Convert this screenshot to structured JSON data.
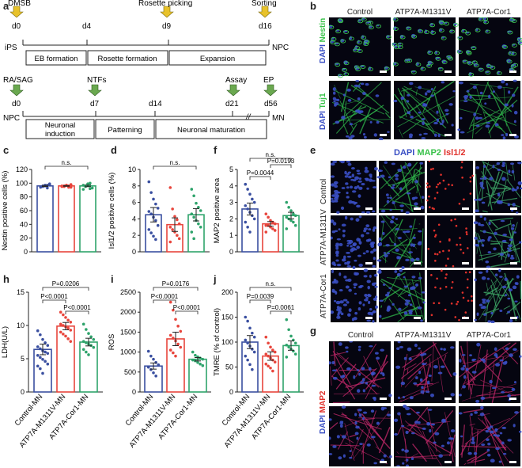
{
  "panel_letters": {
    "a": "a",
    "b": "b",
    "c": "c",
    "d": "d",
    "e": "e",
    "f": "f",
    "g": "g",
    "h": "h",
    "i": "i",
    "j": "j"
  },
  "timeline1": {
    "events": [
      "DMSB",
      "Rosette picking",
      "Sorting"
    ],
    "days": [
      "d0",
      "d4",
      "d9",
      "d16"
    ],
    "start": "iPS",
    "end": "NPC",
    "stages": [
      "EB formation",
      "Rosette  formation",
      "Expansion"
    ],
    "arrow_color": "#e8c22b"
  },
  "timeline2": {
    "events": [
      "RA/SAG",
      "NTFs",
      "Assay",
      "EP"
    ],
    "days": [
      "d0",
      "d7",
      "d14",
      "d21",
      "d56"
    ],
    "start": "NPC",
    "end": "MN",
    "stages": [
      "Neuronal\ninduction",
      "Patterning",
      "Neuronal maturation"
    ],
    "break_mark": "//",
    "arrow_color": "#6aa84f"
  },
  "panel_b": {
    "columns": [
      "Control",
      "ATP7A-M1311V",
      "ATP7A-Cor1"
    ],
    "rows": [
      {
        "dapi": "DAPI",
        "marker": "Nestin",
        "marker_color": "#39c24a"
      },
      {
        "dapi": "DAPI",
        "marker": "Tuj1",
        "marker_color": "#39c24a"
      }
    ]
  },
  "panel_e": {
    "header": {
      "dapi": "DAPI",
      "map2": "MAP2",
      "isl": "Isl1/2"
    },
    "rows": [
      "Control",
      "ATP7A-M1311V",
      "ATP7A-Cor1"
    ]
  },
  "panel_g": {
    "columns": [
      "Control",
      "ATP7A-M1311V",
      "ATP7A-Cor1"
    ],
    "side": {
      "dapi": "DAPI",
      "marker": "MAP2"
    }
  },
  "colors": {
    "control": "#3a4fa0",
    "mutant": "#e8453c",
    "corrected": "#2ea36b",
    "dapi": "#3a4fc4",
    "green": "#39c24a",
    "red": "#e0312b"
  },
  "chart_data": [
    {
      "id": "c",
      "type": "bar",
      "ylabel": "Nestin positive cells (%)",
      "ylim": [
        0,
        120
      ],
      "yticks": [
        0,
        20,
        40,
        60,
        80,
        100,
        120
      ],
      "categories": [
        "",
        "",
        ""
      ],
      "values": [
        96,
        96,
        96
      ],
      "points": [
        [
          94,
          95,
          96,
          97,
          98,
          95,
          96,
          97,
          93,
          99
        ],
        [
          95,
          96,
          97,
          94,
          98,
          96,
          95,
          97,
          96,
          94
        ],
        [
          91,
          95,
          98,
          100,
          93,
          97,
          96,
          99,
          92
        ]
      ],
      "comparisons": [
        {
          "from": 0,
          "to": 2,
          "label": "n.s."
        }
      ]
    },
    {
      "id": "d",
      "type": "bar",
      "ylabel": "Isl1/2 positive cells (%)",
      "ylim": [
        0,
        10
      ],
      "yticks": [
        0,
        2,
        4,
        6,
        8,
        10
      ],
      "categories": [
        "",
        "",
        ""
      ],
      "values": [
        4.5,
        3.3,
        4.5
      ],
      "points": [
        [
          8.5,
          7.2,
          6.4,
          5.8,
          5.3,
          4.9,
          4.6,
          4.2,
          3.8,
          3.2,
          2.7,
          2.3,
          1.9,
          1.5
        ],
        [
          7.8,
          5.2,
          4.3,
          3.9,
          3.4,
          3.0,
          2.7,
          2.4,
          2.0,
          1.6,
          1.2
        ],
        [
          7.6,
          6.8,
          5.9,
          5.4,
          5.0,
          4.6,
          4.2,
          3.8,
          3.4,
          3.0,
          2.4,
          1.6
        ]
      ],
      "comparisons": [
        {
          "from": 0,
          "to": 2,
          "label": "n.s."
        }
      ]
    },
    {
      "id": "f",
      "type": "bar",
      "ylabel": "MAP2 positive area",
      "ylim": [
        0,
        5
      ],
      "yticks": [
        0,
        1,
        2,
        3,
        4,
        5
      ],
      "categories": [
        "",
        "",
        ""
      ],
      "values": [
        2.6,
        1.7,
        2.2
      ],
      "points": [
        [
          4.1,
          3.8,
          3.5,
          3.2,
          3.0,
          2.8,
          2.6,
          2.4,
          2.2,
          2.0,
          1.8,
          1.5,
          1.2
        ],
        [
          2.3,
          2.1,
          1.9,
          1.8,
          1.7,
          1.6,
          1.6,
          1.5,
          1.4,
          1.3,
          1.2
        ],
        [
          3.0,
          2.7,
          2.5,
          2.3,
          2.2,
          2.1,
          2.0,
          1.9,
          1.8,
          1.6,
          1.4
        ]
      ],
      "comparisons": [
        {
          "from": 0,
          "to": 2,
          "label": "n.s."
        },
        {
          "from": 0,
          "to": 1,
          "label": "P=0.0044"
        },
        {
          "from": 1,
          "to": 2,
          "label": "P=0.0193"
        }
      ]
    },
    {
      "id": "h",
      "type": "bar",
      "ylabel": "LDH(U/L)",
      "ylim": [
        0,
        15
      ],
      "yticks": [
        0,
        5,
        10,
        15
      ],
      "categories": [
        "Control-MN",
        "ATP7A-M1311V-MN",
        "ATP7A-Cor1-MN"
      ],
      "values": [
        6.4,
        9.9,
        7.5
      ],
      "points": [
        [
          9.2,
          8.6,
          7.9,
          7.4,
          7.0,
          6.8,
          6.5,
          6.2,
          6.0,
          5.8,
          5.5,
          5.2,
          4.9,
          4.6,
          4.2,
          3.9,
          3.5,
          2.8
        ],
        [
          12.0,
          11.6,
          11.2,
          10.8,
          10.5,
          10.2,
          10.0,
          9.8,
          9.6,
          9.3,
          9.0,
          8.7,
          8.4,
          8.0,
          7.6
        ],
        [
          10.2,
          9.4,
          8.8,
          8.3,
          7.9,
          7.6,
          7.4,
          7.2,
          7.0,
          6.7,
          6.4,
          6.0,
          5.6
        ]
      ],
      "comparisons": [
        {
          "from": 0,
          "to": 2,
          "label": "P=0.0206"
        },
        {
          "from": 0,
          "to": 1,
          "label": "P<0.0001"
        },
        {
          "from": 1,
          "to": 2,
          "label": "P<0.0001"
        }
      ]
    },
    {
      "id": "i",
      "type": "bar",
      "ylabel": "ROS",
      "ylim": [
        0,
        2500
      ],
      "yticks": [
        0,
        500,
        1000,
        1500,
        2000,
        2500
      ],
      "categories": [
        "Control-MN",
        "ATP7A-M1311V-MN",
        "ATP7A-Cor1-MN"
      ],
      "values": [
        650,
        1330,
        820
      ],
      "points": [
        [
          1020,
          900,
          820,
          740,
          680,
          620,
          560,
          480,
          400
        ],
        [
          2250,
          2050,
          1820,
          1650,
          1520,
          1420,
          1350,
          1280,
          1200,
          1120,
          1050,
          980,
          900
        ],
        [
          1000,
          920,
          880,
          850,
          820,
          800,
          780,
          740,
          700,
          660
        ]
      ],
      "comparisons": [
        {
          "from": 0,
          "to": 2,
          "label": "P=0.0176"
        },
        {
          "from": 0,
          "to": 1,
          "label": "P<0.0001"
        },
        {
          "from": 1,
          "to": 2,
          "label": "P<0.0001"
        }
      ]
    },
    {
      "id": "j",
      "type": "bar",
      "ylabel": "TMRE (% of control)",
      "ylim": [
        0,
        200
      ],
      "yticks": [
        0,
        50,
        100,
        150,
        200
      ],
      "categories": [
        "Control-MN",
        "ATP7A-M1311V-MN",
        "ATP7A-Cor1-MN"
      ],
      "values": [
        100,
        72,
        93
      ],
      "points": [
        [
          150,
          142,
          128,
          118,
          110,
          104,
          98,
          92,
          86,
          80,
          72,
          64,
          55,
          45
        ],
        [
          110,
          98,
          90,
          84,
          80,
          76,
          72,
          68,
          64,
          60,
          56,
          52,
          48,
          42
        ],
        [
          145,
          125,
          112,
          104,
          98,
          94,
          90,
          86,
          82,
          76,
          70
        ]
      ],
      "comparisons": [
        {
          "from": 0,
          "to": 2,
          "label": "n.s."
        },
        {
          "from": 0,
          "to": 1,
          "label": "P=0.0039"
        },
        {
          "from": 1,
          "to": 2,
          "label": "P=0.0061"
        }
      ]
    }
  ]
}
